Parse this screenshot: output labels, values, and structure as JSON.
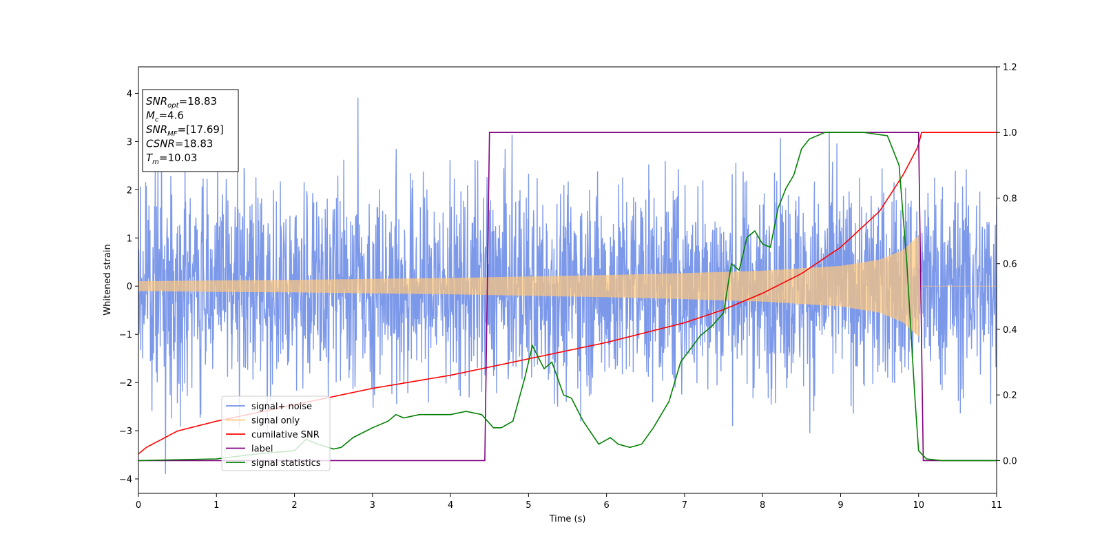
{
  "chart_data": {
    "type": "line",
    "xlabel": "Time (s)",
    "ylabel_left": "Whitened strain",
    "ylabel_right": "",
    "xlim": [
      0,
      11
    ],
    "ylim_left": [
      -4.3,
      4.55
    ],
    "ylim_right": [
      -0.1,
      1.2
    ],
    "x_ticks": [
      0,
      1,
      2,
      3,
      4,
      5,
      6,
      7,
      8,
      9,
      10,
      11
    ],
    "x_tick_labels": [
      "0",
      "1",
      "2",
      "3",
      "4",
      "5",
      "6",
      "7",
      "8",
      "9",
      "10",
      "11"
    ],
    "y_left_ticks": [
      -4,
      -3,
      -2,
      -1,
      0,
      1,
      2,
      3,
      4
    ],
    "y_left_tick_labels": [
      "−4",
      "−3",
      "−2",
      "−1",
      "0",
      "1",
      "2",
      "3",
      "4"
    ],
    "y_right_ticks": [
      0.0,
      0.2,
      0.4,
      0.6,
      0.8,
      1.0,
      1.2
    ],
    "y_right_tick_labels": [
      "0.0",
      "0.2",
      "0.4",
      "0.6",
      "0.8",
      "1.0",
      "1.2"
    ],
    "grid": false,
    "legend_position": "lower-left",
    "legend": [
      {
        "label": "signal+ noise",
        "color": "#7592e8"
      },
      {
        "label": "signal only",
        "color": "#ffc77a"
      },
      {
        "label": "cumilative SNR",
        "color": "#ff0000"
      },
      {
        "label": "label",
        "color": "#800080"
      },
      {
        "label": "signal statistics",
        "color": "#008000"
      }
    ],
    "annotation_box": {
      "lines": [
        {
          "sym": "SNR",
          "sub": "opt",
          "val": "=18.83"
        },
        {
          "sym": "M",
          "sub": "c",
          "val": "=4.6"
        },
        {
          "sym": "SNR",
          "sub": "MF",
          "val": "=[17.69]"
        },
        {
          "sym": "CSNR",
          "sub": "",
          "val": "=18.83"
        },
        {
          "sym": "T",
          "sub": "m",
          "val": "=10.03"
        }
      ]
    },
    "series": [
      {
        "name": "signal+ noise",
        "axis": "left",
        "color": "#7592e8",
        "description": "whitened noisy strain, roughly within -3.9 to 4.2",
        "x_range": [
          0,
          11
        ],
        "seed": 7
      },
      {
        "name": "signal only",
        "axis": "left",
        "color": "#ffc77a",
        "envelope_x": [
          0,
          1,
          2,
          3,
          4,
          5,
          6,
          7,
          8,
          9,
          9.5,
          9.8,
          10.0,
          10.03,
          11
        ],
        "envelope_y": [
          0.1,
          0.12,
          0.13,
          0.15,
          0.17,
          0.2,
          0.23,
          0.27,
          0.32,
          0.42,
          0.55,
          0.75,
          1.05,
          0,
          0
        ]
      },
      {
        "name": "cumilative SNR",
        "axis": "right",
        "color": "#ff0000",
        "x": [
          0,
          0.1,
          0.5,
          1,
          2,
          3,
          4,
          5,
          6,
          7,
          7.5,
          8,
          8.5,
          9,
          9.5,
          9.8,
          10.0,
          10.03,
          11
        ],
        "y": [
          0.02,
          0.04,
          0.09,
          0.12,
          0.17,
          0.22,
          0.26,
          0.31,
          0.36,
          0.42,
          0.46,
          0.51,
          0.57,
          0.65,
          0.76,
          0.87,
          0.96,
          1.0,
          1.0
        ]
      },
      {
        "name": "label",
        "axis": "right",
        "color": "#800080",
        "x": [
          0,
          4.44,
          4.5,
          10.0,
          10.06,
          11
        ],
        "y": [
          0,
          0,
          1,
          1,
          0,
          0
        ]
      },
      {
        "name": "signal statistics",
        "axis": "right",
        "color": "#008000",
        "x": [
          0,
          1,
          1.5,
          2,
          2.15,
          2.3,
          2.5,
          2.6,
          2.75,
          3,
          3.2,
          3.3,
          3.4,
          3.6,
          3.8,
          4,
          4.2,
          4.4,
          4.55,
          4.65,
          4.8,
          4.95,
          5.05,
          5.2,
          5.3,
          5.45,
          5.55,
          5.7,
          5.9,
          6.05,
          6.15,
          6.3,
          6.45,
          6.6,
          6.8,
          6.95,
          7.2,
          7.35,
          7.5,
          7.6,
          7.7,
          7.8,
          7.9,
          8.0,
          8.1,
          8.2,
          8.3,
          8.4,
          8.5,
          8.6,
          8.8,
          9.0,
          9.3,
          9.6,
          9.75,
          9.85,
          9.95,
          10.0,
          10.1,
          10.3,
          11
        ],
        "y": [
          0,
          0.005,
          0.02,
          0.03,
          0.065,
          0.05,
          0.035,
          0.04,
          0.07,
          0.1,
          0.12,
          0.14,
          0.13,
          0.14,
          0.14,
          0.14,
          0.15,
          0.14,
          0.1,
          0.1,
          0.12,
          0.25,
          0.35,
          0.28,
          0.3,
          0.2,
          0.19,
          0.12,
          0.05,
          0.07,
          0.05,
          0.04,
          0.05,
          0.1,
          0.18,
          0.3,
          0.38,
          0.41,
          0.45,
          0.6,
          0.58,
          0.68,
          0.7,
          0.66,
          0.65,
          0.77,
          0.83,
          0.87,
          0.95,
          0.98,
          1.0,
          1.0,
          1.0,
          0.99,
          0.9,
          0.6,
          0.2,
          0.03,
          0.005,
          0,
          0
        ]
      }
    ]
  }
}
